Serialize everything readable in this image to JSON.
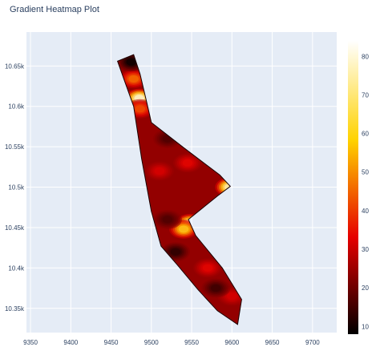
{
  "chart_data": {
    "type": "heatmap",
    "title": "Gradient Heatmap Plot",
    "xlabel": "",
    "ylabel": "",
    "xlim": [
      9345,
      9730
    ],
    "ylim": [
      10320,
      10692
    ],
    "x_ticks": [
      {
        "value": 9350,
        "label": "9350"
      },
      {
        "value": 9400,
        "label": "9400"
      },
      {
        "value": 9450,
        "label": "9450"
      },
      {
        "value": 9500,
        "label": "9500"
      },
      {
        "value": 9550,
        "label": "9550"
      },
      {
        "value": 9600,
        "label": "9600"
      },
      {
        "value": 9650,
        "label": "9650"
      },
      {
        "value": 9700,
        "label": "9700"
      }
    ],
    "y_ticks": [
      {
        "value": 10350,
        "label": "10.35k"
      },
      {
        "value": 10400,
        "label": "10.4k"
      },
      {
        "value": 10450,
        "label": "10.45k"
      },
      {
        "value": 10500,
        "label": "10.5k"
      },
      {
        "value": 10550,
        "label": "10.55k"
      },
      {
        "value": 10600,
        "label": "10.6k"
      },
      {
        "value": 10650,
        "label": "10.65k"
      }
    ],
    "colorbar": {
      "range": [
        8,
        84
      ],
      "ticks": [
        10,
        20,
        30,
        40,
        50,
        60,
        70,
        80
      ],
      "colorscale": "hot",
      "stops": [
        [
          0.0,
          "#000000"
        ],
        [
          0.33,
          "#e60000"
        ],
        [
          0.66,
          "#ffd200"
        ],
        [
          1.0,
          "#ffffff"
        ]
      ]
    },
    "region_boundary": [
      [
        9458,
        10656
      ],
      [
        9478,
        10664
      ],
      [
        9486,
        10640
      ],
      [
        9494,
        10606
      ],
      [
        9500,
        10580
      ],
      [
        9540,
        10549
      ],
      [
        9585,
        10515
      ],
      [
        9598,
        10501
      ],
      [
        9582,
        10489
      ],
      [
        9546,
        10460
      ],
      [
        9555,
        10440
      ],
      [
        9588,
        10400
      ],
      [
        9612,
        10361
      ],
      [
        9607,
        10330
      ],
      [
        9582,
        10347
      ],
      [
        9558,
        10373
      ],
      [
        9532,
        10404
      ],
      [
        9512,
        10427
      ],
      [
        9500,
        10470
      ],
      [
        9488,
        10535
      ],
      [
        9478,
        10600
      ],
      [
        9468,
        10628
      ]
    ],
    "background_value": 24,
    "hotspots": [
      {
        "x": 9485,
        "y": 10610,
        "value": 84
      },
      {
        "x": 9478,
        "y": 10634,
        "value": 48
      },
      {
        "x": 9486,
        "y": 10597,
        "value": 44
      },
      {
        "x": 9597,
        "y": 10500,
        "value": 80
      },
      {
        "x": 9548,
        "y": 10455,
        "value": 80
      },
      {
        "x": 9540,
        "y": 10448,
        "value": 62
      },
      {
        "x": 9570,
        "y": 10400,
        "value": 34
      },
      {
        "x": 9545,
        "y": 10530,
        "value": 34
      },
      {
        "x": 9510,
        "y": 10520,
        "value": 32
      },
      {
        "x": 9600,
        "y": 10365,
        "value": 32
      },
      {
        "x": 9475,
        "y": 10655,
        "value": 8
      },
      {
        "x": 9530,
        "y": 10420,
        "value": 12
      },
      {
        "x": 9580,
        "y": 10375,
        "value": 14
      },
      {
        "x": 9520,
        "y": 10560,
        "value": 16
      },
      {
        "x": 9520,
        "y": 10460,
        "value": 16
      }
    ]
  }
}
